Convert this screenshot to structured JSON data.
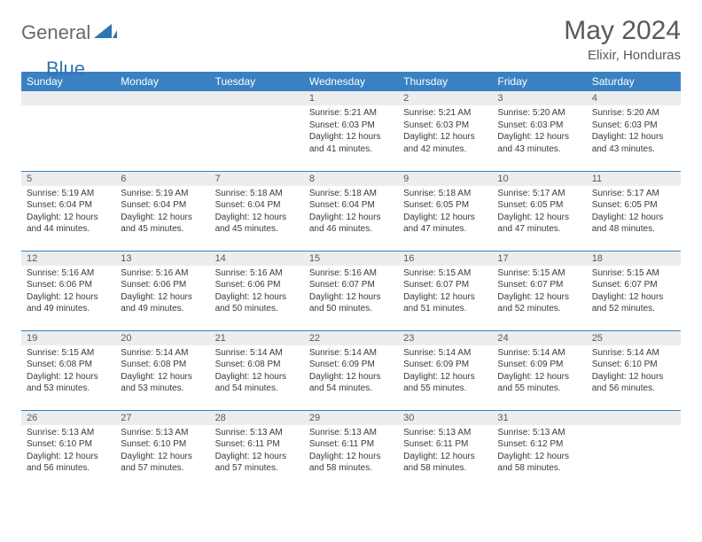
{
  "brand": {
    "general": "General",
    "blue": "Blue"
  },
  "title": {
    "month": "May 2024",
    "location": "Elixir, Honduras"
  },
  "colors": {
    "header_bg": "#3a81c2",
    "header_fg": "#ffffff",
    "daynum_bg": "#ededed",
    "text_gray": "#595959",
    "row_border": "#3a81c2",
    "brand_blue": "#2f75b5"
  },
  "weekdays": [
    "Sunday",
    "Monday",
    "Tuesday",
    "Wednesday",
    "Thursday",
    "Friday",
    "Saturday"
  ],
  "first_weekday_index": 3,
  "days": [
    {
      "n": 1,
      "sunrise": "5:21 AM",
      "sunset": "6:03 PM",
      "daylight": "12 hours and 41 minutes."
    },
    {
      "n": 2,
      "sunrise": "5:21 AM",
      "sunset": "6:03 PM",
      "daylight": "12 hours and 42 minutes."
    },
    {
      "n": 3,
      "sunrise": "5:20 AM",
      "sunset": "6:03 PM",
      "daylight": "12 hours and 43 minutes."
    },
    {
      "n": 4,
      "sunrise": "5:20 AM",
      "sunset": "6:03 PM",
      "daylight": "12 hours and 43 minutes."
    },
    {
      "n": 5,
      "sunrise": "5:19 AM",
      "sunset": "6:04 PM",
      "daylight": "12 hours and 44 minutes."
    },
    {
      "n": 6,
      "sunrise": "5:19 AM",
      "sunset": "6:04 PM",
      "daylight": "12 hours and 45 minutes."
    },
    {
      "n": 7,
      "sunrise": "5:18 AM",
      "sunset": "6:04 PM",
      "daylight": "12 hours and 45 minutes."
    },
    {
      "n": 8,
      "sunrise": "5:18 AM",
      "sunset": "6:04 PM",
      "daylight": "12 hours and 46 minutes."
    },
    {
      "n": 9,
      "sunrise": "5:18 AM",
      "sunset": "6:05 PM",
      "daylight": "12 hours and 47 minutes."
    },
    {
      "n": 10,
      "sunrise": "5:17 AM",
      "sunset": "6:05 PM",
      "daylight": "12 hours and 47 minutes."
    },
    {
      "n": 11,
      "sunrise": "5:17 AM",
      "sunset": "6:05 PM",
      "daylight": "12 hours and 48 minutes."
    },
    {
      "n": 12,
      "sunrise": "5:16 AM",
      "sunset": "6:06 PM",
      "daylight": "12 hours and 49 minutes."
    },
    {
      "n": 13,
      "sunrise": "5:16 AM",
      "sunset": "6:06 PM",
      "daylight": "12 hours and 49 minutes."
    },
    {
      "n": 14,
      "sunrise": "5:16 AM",
      "sunset": "6:06 PM",
      "daylight": "12 hours and 50 minutes."
    },
    {
      "n": 15,
      "sunrise": "5:16 AM",
      "sunset": "6:07 PM",
      "daylight": "12 hours and 50 minutes."
    },
    {
      "n": 16,
      "sunrise": "5:15 AM",
      "sunset": "6:07 PM",
      "daylight": "12 hours and 51 minutes."
    },
    {
      "n": 17,
      "sunrise": "5:15 AM",
      "sunset": "6:07 PM",
      "daylight": "12 hours and 52 minutes."
    },
    {
      "n": 18,
      "sunrise": "5:15 AM",
      "sunset": "6:07 PM",
      "daylight": "12 hours and 52 minutes."
    },
    {
      "n": 19,
      "sunrise": "5:15 AM",
      "sunset": "6:08 PM",
      "daylight": "12 hours and 53 minutes."
    },
    {
      "n": 20,
      "sunrise": "5:14 AM",
      "sunset": "6:08 PM",
      "daylight": "12 hours and 53 minutes."
    },
    {
      "n": 21,
      "sunrise": "5:14 AM",
      "sunset": "6:08 PM",
      "daylight": "12 hours and 54 minutes."
    },
    {
      "n": 22,
      "sunrise": "5:14 AM",
      "sunset": "6:09 PM",
      "daylight": "12 hours and 54 minutes."
    },
    {
      "n": 23,
      "sunrise": "5:14 AM",
      "sunset": "6:09 PM",
      "daylight": "12 hours and 55 minutes."
    },
    {
      "n": 24,
      "sunrise": "5:14 AM",
      "sunset": "6:09 PM",
      "daylight": "12 hours and 55 minutes."
    },
    {
      "n": 25,
      "sunrise": "5:14 AM",
      "sunset": "6:10 PM",
      "daylight": "12 hours and 56 minutes."
    },
    {
      "n": 26,
      "sunrise": "5:13 AM",
      "sunset": "6:10 PM",
      "daylight": "12 hours and 56 minutes."
    },
    {
      "n": 27,
      "sunrise": "5:13 AM",
      "sunset": "6:10 PM",
      "daylight": "12 hours and 57 minutes."
    },
    {
      "n": 28,
      "sunrise": "5:13 AM",
      "sunset": "6:11 PM",
      "daylight": "12 hours and 57 minutes."
    },
    {
      "n": 29,
      "sunrise": "5:13 AM",
      "sunset": "6:11 PM",
      "daylight": "12 hours and 58 minutes."
    },
    {
      "n": 30,
      "sunrise": "5:13 AM",
      "sunset": "6:11 PM",
      "daylight": "12 hours and 58 minutes."
    },
    {
      "n": 31,
      "sunrise": "5:13 AM",
      "sunset": "6:12 PM",
      "daylight": "12 hours and 58 minutes."
    }
  ],
  "labels": {
    "sunrise": "Sunrise:",
    "sunset": "Sunset:",
    "daylight": "Daylight:"
  }
}
